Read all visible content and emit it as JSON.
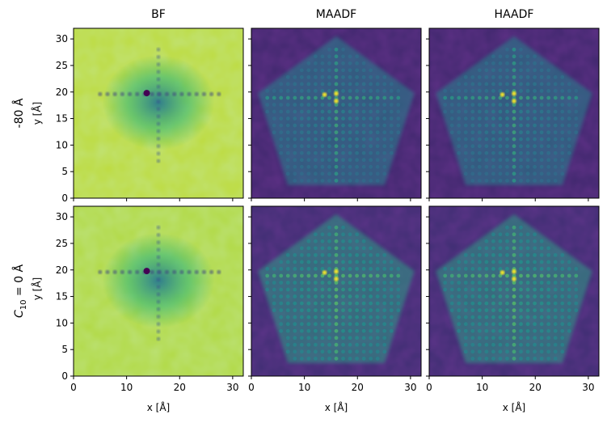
{
  "chart_data": {
    "type": "heatmap",
    "columns": [
      "BF",
      "MAADF",
      "HAADF"
    ],
    "rows": [
      {
        "label_main": "-80 Å",
        "label_sub": "y [Å]"
      },
      {
        "label_main_prefix": "C",
        "label_main_sub": "10",
        "label_main_suffix": " = 0 Å",
        "label_sub": "y [Å]"
      }
    ],
    "xlabel": "x [Å]",
    "ylabel": "y [Å]",
    "xlim": [
      0,
      32
    ],
    "ylim": [
      0,
      32
    ],
    "xticks": [
      0,
      10,
      20,
      30
    ],
    "yticks": [
      0,
      5,
      10,
      15,
      20,
      25,
      30
    ],
    "colormap": "viridis",
    "panels": [
      {
        "row": 0,
        "col": "BF",
        "detector": "BF",
        "background_level": 0.9,
        "feature_level": 0.35,
        "pentagon": false
      },
      {
        "row": 0,
        "col": "MAADF",
        "detector": "MAADF",
        "background_level": 0.12,
        "feature_level": 0.45,
        "pentagon": true
      },
      {
        "row": 0,
        "col": "HAADF",
        "detector": "HAADF",
        "background_level": 0.12,
        "feature_level": 0.45,
        "pentagon": true
      },
      {
        "row": 1,
        "col": "BF",
        "detector": "BF",
        "background_level": 0.88,
        "feature_level": 0.3,
        "pentagon": false
      },
      {
        "row": 1,
        "col": "MAADF",
        "detector": "MAADF",
        "background_level": 0.14,
        "feature_level": 0.55,
        "pentagon": true
      },
      {
        "row": 1,
        "col": "HAADF",
        "detector": "HAADF",
        "background_level": 0.14,
        "feature_level": 0.55,
        "pentagon": true
      }
    ]
  }
}
